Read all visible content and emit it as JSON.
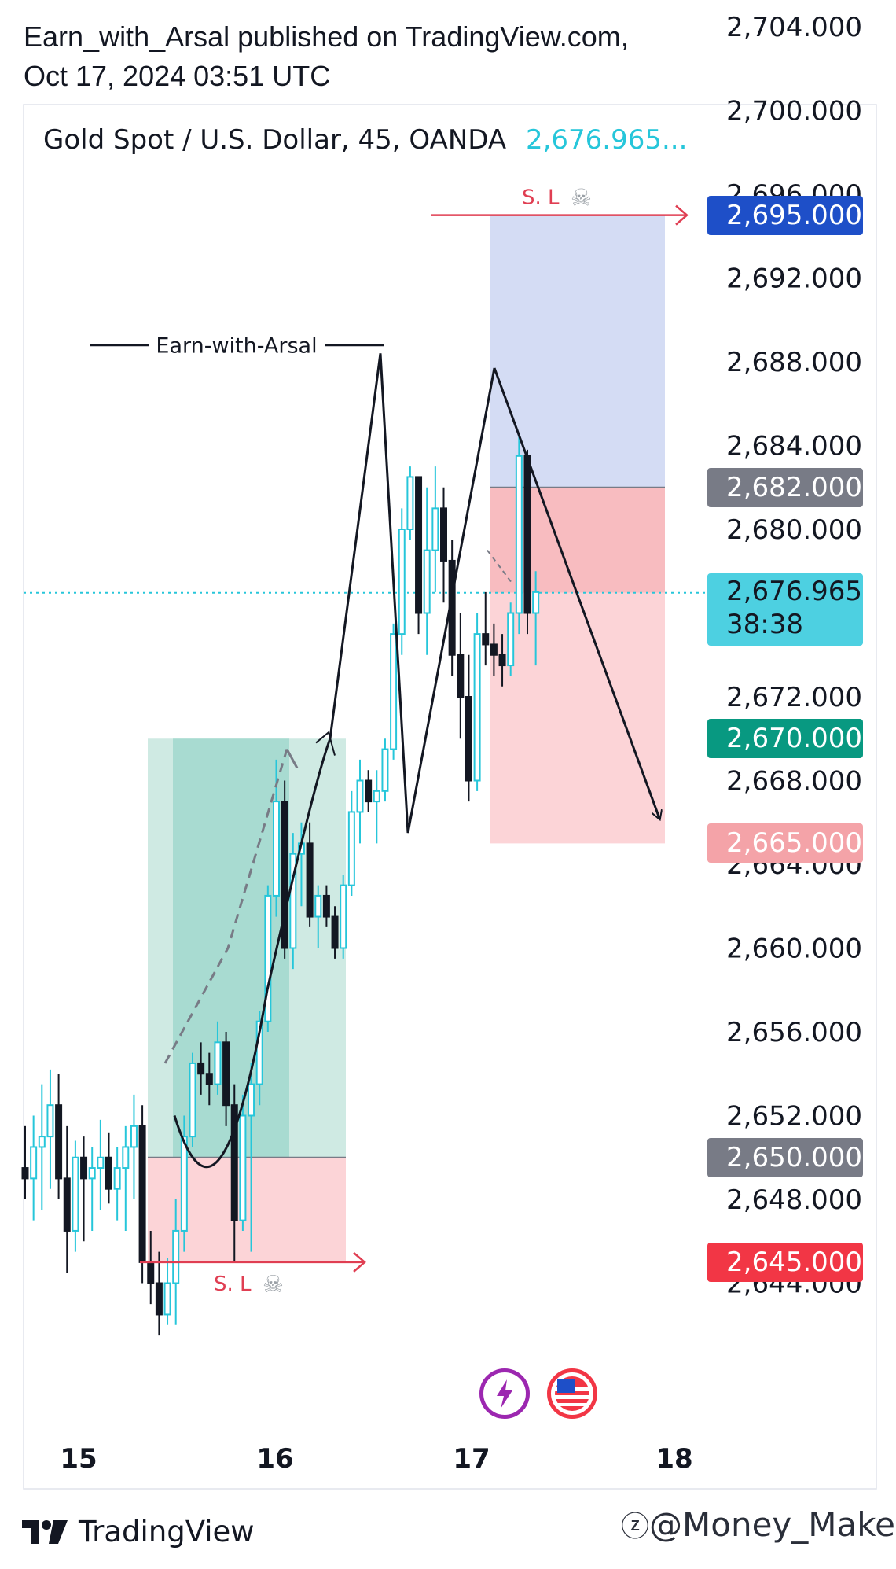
{
  "header": {
    "line1": "Earn_with_Arsal published on TradingView.com,",
    "line2": "Oct 17, 2024 03:51 UTC"
  },
  "legend": {
    "symbol": "Gold Spot / U.S. Dollar, 45, OANDA",
    "last_price": "2,676.965..."
  },
  "footer": {
    "brand": "TradingView",
    "watermark": "@Money_Maker"
  },
  "colors": {
    "up": "#26c6da",
    "down": "#131722",
    "accent_blue": "#1e4fc8",
    "stop_red": "#f23645",
    "target_green": "#089981",
    "entry_gray": "#787b86",
    "long_zone": "#cfeae3",
    "short_loss_zone": "#d4dcf4",
    "short_target_zone": "#fcd4d7"
  },
  "icons": [
    "lightning-icon",
    "us-flag-icon",
    "skull-icon",
    "tradingview-logo-icon"
  ],
  "chart_data": {
    "type": "candlestick",
    "symbol": "XAUUSD",
    "timeframe": "45",
    "y_ticks": [
      2704,
      2700,
      2696,
      2692,
      2688,
      2684,
      2680,
      2672,
      2668,
      2664,
      2660,
      2656,
      2652,
      2648,
      2644
    ],
    "x_ticks": [
      "15",
      "16",
      "17",
      "18"
    ],
    "price_labels": [
      {
        "value": "2,695.000",
        "color": "#1e4fc8"
      },
      {
        "value": "2,682.000",
        "color": "#787b86"
      },
      {
        "value": "2,676.965",
        "color": "#4dd0e1",
        "countdown": "38:38"
      },
      {
        "value": "2,670.000",
        "color": "#089981"
      },
      {
        "value": "2,665.000",
        "color": "#f4a3a8"
      },
      {
        "value": "2,650.000",
        "color": "#787b86"
      },
      {
        "value": "2,645.000",
        "color": "#f23645"
      }
    ],
    "current_price": 2676.965,
    "long_position": {
      "entry": 2650,
      "target": 2670,
      "stop": 2645
    },
    "short_position": {
      "entry": 2682,
      "target": 2665,
      "stop": 2695
    },
    "annotations": [
      {
        "text": "Earn-with-Arsal"
      },
      {
        "text": "S. L",
        "at": 2695
      },
      {
        "text": "S. L",
        "at": 2645
      }
    ],
    "candles": [
      [
        2649.5,
        2651.5,
        2648.0,
        2649.0
      ],
      [
        2649.0,
        2652.0,
        2647.0,
        2650.5
      ],
      [
        2650.5,
        2653.5,
        2647.5,
        2651.0
      ],
      [
        2651.0,
        2654.2,
        2648.5,
        2652.5
      ],
      [
        2652.5,
        2654.0,
        2648.0,
        2649.0
      ],
      [
        2649.0,
        2651.5,
        2644.5,
        2646.5
      ],
      [
        2646.5,
        2650.8,
        2645.5,
        2650.0
      ],
      [
        2650.0,
        2651.0,
        2646.0,
        2649.0
      ],
      [
        2649.0,
        2650.5,
        2646.5,
        2649.5
      ],
      [
        2649.5,
        2651.8,
        2647.5,
        2650.0
      ],
      [
        2650.0,
        2651.2,
        2647.8,
        2648.5
      ],
      [
        2648.5,
        2650.5,
        2647.0,
        2649.5
      ],
      [
        2649.5,
        2651.5,
        2646.5,
        2650.5
      ],
      [
        2650.5,
        2653.0,
        2648.0,
        2651.5
      ],
      [
        2651.5,
        2652.5,
        2644.0,
        2645.0
      ],
      [
        2645.0,
        2646.5,
        2643.0,
        2644.0
      ],
      [
        2644.0,
        2645.5,
        2641.5,
        2642.5
      ],
      [
        2642.5,
        2645.2,
        2642.0,
        2644.0
      ],
      [
        2644.0,
        2648.0,
        2642.0,
        2646.5
      ],
      [
        2646.5,
        2652.0,
        2645.5,
        2651.0
      ],
      [
        2651.0,
        2655.0,
        2650.5,
        2654.5
      ],
      [
        2654.5,
        2655.5,
        2653.0,
        2654.0
      ],
      [
        2654.0,
        2655.0,
        2652.5,
        2653.5
      ],
      [
        2653.5,
        2656.5,
        2653.0,
        2655.5
      ],
      [
        2655.5,
        2656.0,
        2651.5,
        2652.5
      ],
      [
        2652.5,
        2653.5,
        2645.0,
        2647.0
      ],
      [
        2647.0,
        2653.0,
        2646.5,
        2652.0
      ],
      [
        2652.0,
        2654.5,
        2645.5,
        2653.5
      ],
      [
        2653.5,
        2657.0,
        2652.5,
        2656.5
      ],
      [
        2656.5,
        2663.0,
        2656.0,
        2662.5
      ],
      [
        2662.5,
        2669.0,
        2661.5,
        2667.0
      ],
      [
        2667.0,
        2668.0,
        2659.5,
        2660.0
      ],
      [
        2660.0,
        2665.5,
        2659.0,
        2664.5
      ],
      [
        2664.5,
        2666.0,
        2662.0,
        2665.0
      ],
      [
        2665.0,
        2666.0,
        2661.0,
        2661.5
      ],
      [
        2661.5,
        2663.0,
        2660.0,
        2662.5
      ],
      [
        2662.5,
        2663.0,
        2661.0,
        2661.5
      ],
      [
        2661.5,
        2662.0,
        2659.5,
        2660.0
      ],
      [
        2660.0,
        2663.5,
        2659.5,
        2663.0
      ],
      [
        2663.0,
        2667.5,
        2662.5,
        2666.5
      ],
      [
        2666.5,
        2669.0,
        2665.0,
        2668.0
      ],
      [
        2668.0,
        2668.5,
        2666.5,
        2667.0
      ],
      [
        2667.0,
        2668.5,
        2665.0,
        2667.5
      ],
      [
        2667.5,
        2670.0,
        2667.0,
        2669.5
      ],
      [
        2669.5,
        2675.5,
        2669.0,
        2675.0
      ],
      [
        2675.0,
        2681.0,
        2674.0,
        2680.0
      ],
      [
        2680.0,
        2683.0,
        2679.5,
        2682.5
      ],
      [
        2682.5,
        2682.5,
        2675.0,
        2676.0
      ],
      [
        2676.0,
        2682.0,
        2674.0,
        2679.0
      ],
      [
        2679.0,
        2683.0,
        2677.0,
        2681.0
      ],
      [
        2681.0,
        2682.0,
        2676.5,
        2678.5
      ],
      [
        2678.5,
        2679.5,
        2673.0,
        2674.0
      ],
      [
        2674.0,
        2676.0,
        2670.0,
        2672.0
      ],
      [
        2672.0,
        2674.0,
        2667.0,
        2668.0
      ],
      [
        2668.0,
        2676.0,
        2667.5,
        2675.0
      ],
      [
        2675.0,
        2677.0,
        2673.5,
        2674.5
      ],
      [
        2674.5,
        2675.5,
        2673.0,
        2674.0
      ],
      [
        2674.0,
        2675.0,
        2672.5,
        2673.5
      ],
      [
        2673.5,
        2676.5,
        2673.0,
        2676.0
      ],
      [
        2676.0,
        2684.5,
        2675.0,
        2683.5
      ],
      [
        2683.5,
        2683.8,
        2675.0,
        2676.0
      ],
      [
        2676.0,
        2678.0,
        2673.5,
        2677.0
      ]
    ]
  }
}
